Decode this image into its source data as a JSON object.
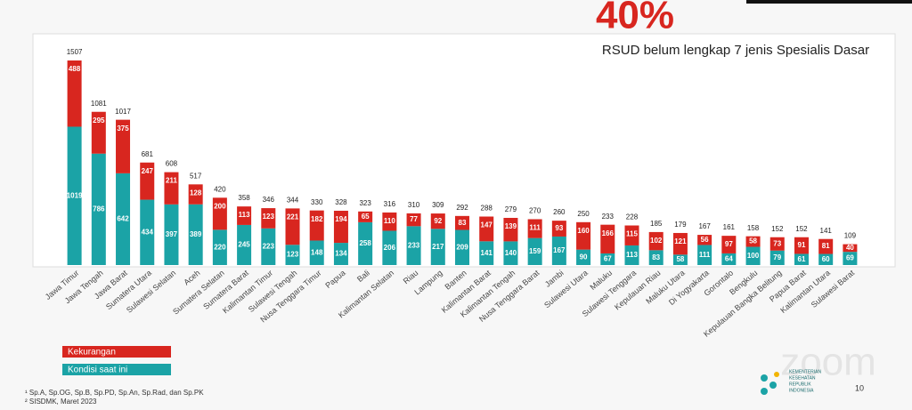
{
  "chart_data": {
    "type": "stacked_bar",
    "title": "40%",
    "subtitle": "RSUD belum lengkap 7 jenis Spesialis Dasar",
    "categories": [
      "Jawa Timur",
      "Jawa Tengah",
      "Jawa Barat",
      "Sumatera Utara",
      "Sulawesi Selatan",
      "Aceh",
      "Sumatera Selatan",
      "Sumatera Barat",
      "Kalimantan Timur",
      "Sulawesi Tengah",
      "Nusa Tenggara Timur",
      "Papua",
      "Bali",
      "Kalimantan Selatan",
      "Riau",
      "Lampung",
      "Banten",
      "Kalimantan Barat",
      "Kalimantan Tengah",
      "Nusa Tenggara Barat",
      "Jambi",
      "Sulawesi Utara",
      "Maluku",
      "Sulawesi Tenggara",
      "Kepulauan Riau",
      "Maluku Utara",
      "Di Yogyakarta",
      "Gorontalo",
      "Bengkulu",
      "Kepulauan Bangka Belitung",
      "Papua Barat",
      "Kalimantan Utara",
      "Sulawesi Barat"
    ],
    "totals": [
      1507,
      1081,
      1017,
      681,
      608,
      517,
      420,
      358,
      346,
      344,
      330,
      328,
      323,
      316,
      310,
      309,
      292,
      288,
      279,
      270,
      260,
      250,
      233,
      228,
      185,
      179,
      167,
      161,
      158,
      152,
      152,
      141,
      109
    ],
    "series": [
      {
        "name": "Kondisi saat ini",
        "color": "#1ba3a6",
        "values": [
          1019,
          786,
          642,
          434,
          397,
          389,
          220,
          245,
          223,
          123,
          148,
          134,
          258,
          206,
          233,
          217,
          209,
          141,
          140,
          159,
          167,
          90,
          67,
          113,
          83,
          58,
          111,
          64,
          100,
          79,
          61,
          60,
          69
        ]
      },
      {
        "name": "Kekurangan",
        "color": "#d8261f",
        "values": [
          488,
          295,
          375,
          247,
          211,
          128,
          200,
          113,
          123,
          221,
          182,
          194,
          65,
          110,
          77,
          92,
          83,
          147,
          139,
          111,
          93,
          160,
          166,
          115,
          102,
          121,
          56,
          97,
          58,
          73,
          91,
          81,
          40
        ]
      }
    ],
    "footnotes": [
      "¹ Sp.A, Sp.OG, Sp.B, Sp.PD, Sp.An, Sp.Rad, dan Sp.PK",
      "² SISDMK, Maret 2023"
    ],
    "logo": [
      "KEMENTERIAN",
      "KESEHATAN",
      "REPUBLIK",
      "INDONESIA"
    ],
    "watermark": "zoom",
    "page_number": "10"
  }
}
